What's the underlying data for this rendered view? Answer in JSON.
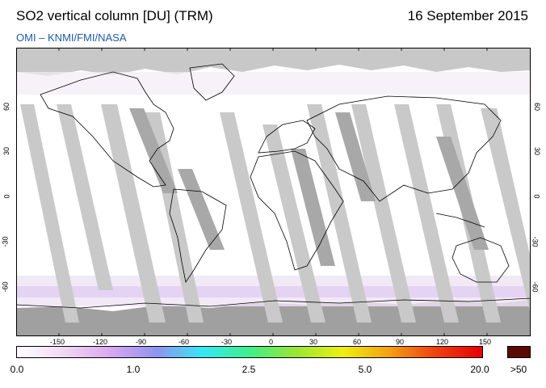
{
  "header": {
    "title": "SO2 vertical column [DU] (TRM)",
    "date": "16 September 2015",
    "source": "OMI  –  KNMI/FMI/NASA"
  },
  "map": {
    "projection": "equirectangular",
    "lon_ticks": [
      "-150",
      "-120",
      "-90",
      "-60",
      "-30",
      "0",
      "30",
      "60",
      "90",
      "120",
      "150"
    ],
    "lat_ticks": [
      "60",
      "30",
      "0",
      "-30",
      "-60"
    ],
    "land_color": "#ffffff",
    "no_data_color": "#c8c8c8",
    "overlap_color": "#a8a8a8"
  },
  "colorbar": {
    "labels": [
      "0.0",
      "1.0",
      "2.5",
      "5.0",
      "20.0"
    ],
    "overflow_label": ">50",
    "overflow_color": "#5a0a00",
    "gradient": [
      "#ffffff",
      "#f2d8f2",
      "#d9a8f0",
      "#8f93f0",
      "#35e8f5",
      "#3df08a",
      "#9ae632",
      "#eef010",
      "#f5a010",
      "#f04010",
      "#e80000"
    ]
  }
}
